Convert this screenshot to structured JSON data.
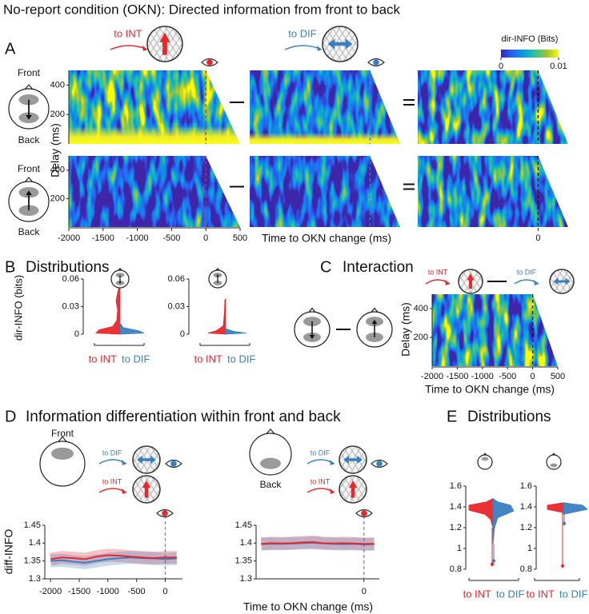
{
  "title": "No-report condition (OKN): Directed information from front to back",
  "panel_labels": [
    "A",
    "B",
    "C",
    "D",
    "E"
  ],
  "panel_titles": [
    "Distributions",
    "Interaction",
    "Information differentiation within front and back",
    "Distributions"
  ],
  "regions": {
    "front": "Front",
    "back": "Back"
  },
  "chart_data": [
    {
      "type": "heatmap",
      "ylabel": "Delay (ms)",
      "xlabel": "Time to OKN change (ms)",
      "xlim": [
        -2000,
        500
      ],
      "ylim": [
        0,
        500
      ],
      "xticks": [
        -2000,
        -1500,
        -1000,
        -500,
        0,
        500
      ],
      "yticks": [
        200,
        400
      ],
      "event_line": 0,
      "series": [
        {
          "name": "to INT",
          "color": "#e8262b"
        },
        {
          "name": "to DIF",
          "color": "#3a7fc1"
        }
      ],
      "colorbar": {
        "label": "dir-INFO (Bits)",
        "lim": [
          0,
          0.01
        ],
        "ticks": [
          0,
          0.01
        ]
      }
    },
    {
      "type": "violin",
      "ylabel": "dir-INFO (bits)",
      "ylim": [
        0,
        0.06
      ],
      "yticks": [
        0,
        0.03,
        0.06
      ],
      "series": [
        {
          "name": "to INT",
          "color": "#e8262b"
        },
        {
          "name": "to DIF",
          "color": "#3a7fc1"
        }
      ]
    },
    {
      "type": "heatmap",
      "ylabel": "Delay (ms)",
      "xlabel": "Time to OKN change (ms)",
      "xlim": [
        -2000,
        500
      ],
      "ylim": [
        0,
        500
      ],
      "xticks": [
        -2000,
        -1500,
        -1000,
        -500,
        0,
        500
      ],
      "yticks": [
        200,
        400
      ],
      "event_line": 0,
      "series": [
        {
          "name": "to INT",
          "color": "#e8262b"
        },
        {
          "name": "to DIF",
          "color": "#3a7fc1"
        }
      ]
    },
    {
      "type": "line",
      "ylabel": "diff-INFO",
      "xlim": [
        -2100,
        300
      ],
      "ylim": [
        1.3,
        1.45
      ],
      "xticks": [
        -2000,
        -1500,
        -1000,
        -500,
        0
      ],
      "yticks": [
        1.3,
        1.35,
        1.4,
        1.45
      ],
      "event_line": 0,
      "x": [
        -2000,
        -1800,
        -1600,
        -1400,
        -1200,
        -1000,
        -800,
        -600,
        -400,
        -200,
        0,
        200
      ],
      "series": [
        {
          "name": "to INT",
          "color": "#e8262b",
          "values": [
            1.355,
            1.36,
            1.358,
            1.355,
            1.362,
            1.366,
            1.365,
            1.362,
            1.36,
            1.358,
            1.36,
            1.36
          ]
        },
        {
          "name": "to DIF",
          "color": "#3a7fc1",
          "values": [
            1.35,
            1.352,
            1.348,
            1.345,
            1.35,
            1.355,
            1.358,
            1.36,
            1.358,
            1.357,
            1.355,
            1.357
          ]
        }
      ]
    },
    {
      "type": "line",
      "xlabel": "Time to OKN change (ms)",
      "xlim": [
        -2100,
        300
      ],
      "ylim": [
        1.3,
        1.45
      ],
      "xticks": [
        0
      ],
      "yticks": [
        1.3,
        1.35,
        1.4,
        1.45
      ],
      "event_line": 0,
      "x": [
        -2000,
        -1800,
        -1600,
        -1400,
        -1200,
        -1000,
        -800,
        -600,
        -400,
        -200,
        0,
        200
      ],
      "series": [
        {
          "name": "to INT",
          "color": "#e8262b",
          "values": [
            1.398,
            1.4,
            1.399,
            1.4,
            1.402,
            1.403,
            1.4,
            1.399,
            1.4,
            1.399,
            1.398,
            1.398
          ]
        },
        {
          "name": "to DIF",
          "color": "#3a7fc1",
          "values": [
            1.397,
            1.398,
            1.398,
            1.399,
            1.4,
            1.401,
            1.399,
            1.398,
            1.397,
            1.398,
            1.396,
            1.397
          ]
        }
      ]
    },
    {
      "type": "violin",
      "ylim": [
        0.8,
        1.6
      ],
      "yticks": [
        0.8,
        1,
        1.2,
        1.4,
        1.6
      ],
      "series": [
        {
          "name": "to INT",
          "color": "#e8262b"
        },
        {
          "name": "to DIF",
          "color": "#3a7fc1"
        }
      ]
    }
  ]
}
